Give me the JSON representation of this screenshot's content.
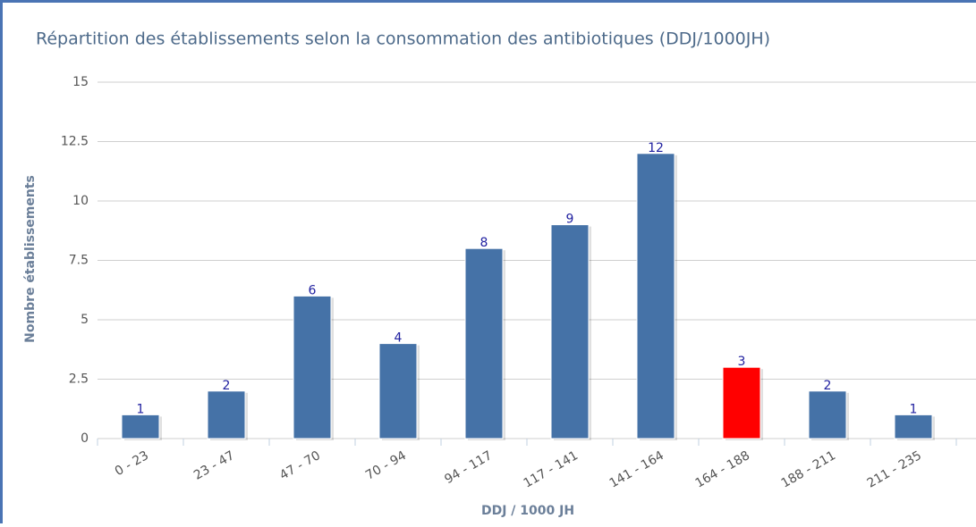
{
  "chart_data": {
    "type": "bar",
    "title": "Répartition des établissements selon la consommation des antibiotiques (DDJ/1000JH)",
    "x_label": "DDJ / 1000 JH",
    "y_label": "Nombre établissements",
    "categories": [
      "0 - 23",
      "23 - 47",
      "47 - 70",
      "70 - 94",
      "94 - 117",
      "117 - 141",
      "141 - 164",
      "164 - 188",
      "188 - 211",
      "211 - 235"
    ],
    "values": [
      1,
      2,
      6,
      4,
      8,
      9,
      12,
      3,
      2,
      1
    ],
    "colors": [
      "#4572a7",
      "#4572a7",
      "#4572a7",
      "#4572a7",
      "#4572a7",
      "#4572a7",
      "#4572a7",
      "#ff0000",
      "#4572a7",
      "#4572a7"
    ],
    "ylim": [
      0,
      15
    ],
    "yticks": [
      0,
      2.5,
      5,
      7.5,
      10,
      12.5,
      15
    ],
    "grid": true
  }
}
